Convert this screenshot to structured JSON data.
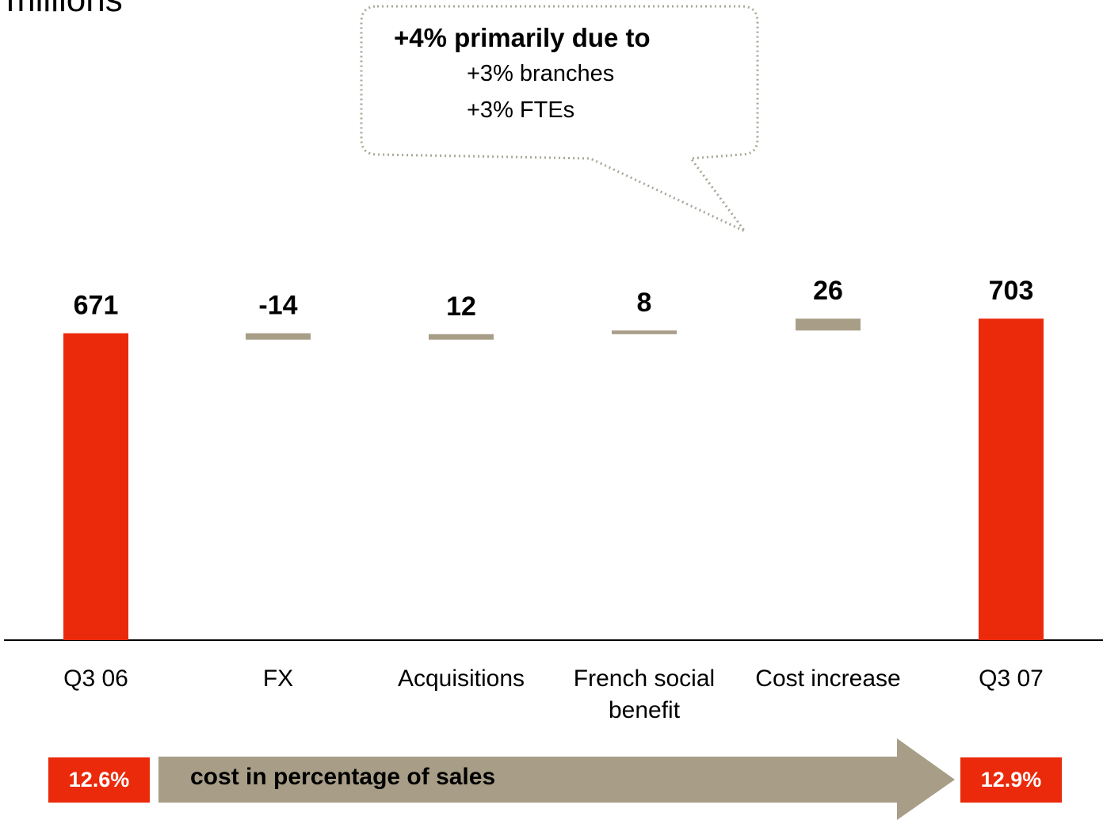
{
  "header": {
    "title": "millions"
  },
  "callout": {
    "headline": "+4% primarily due to",
    "lines": [
      "+3% branches",
      "+3% FTEs"
    ]
  },
  "footer": {
    "start_pct": "12.6%",
    "arrow_label": "cost in percentage of sales",
    "end_pct": "12.9%"
  },
  "colors": {
    "total": "#ea2a0b",
    "delta": "#a89e88",
    "axis": "#000000",
    "callout_border": "#a8a898"
  },
  "chart_data": {
    "type": "bar",
    "subtype": "waterfall",
    "categories": [
      "Q3 06",
      "FX",
      "Acquisitions",
      "French social benefit",
      "Cost increase",
      "Q3 07"
    ],
    "category_lines": [
      [
        "Q3 06"
      ],
      [
        "FX"
      ],
      [
        "Acquisitions"
      ],
      [
        "French social",
        "benefit"
      ],
      [
        "Cost increase"
      ],
      [
        "Q3 07"
      ]
    ],
    "values": [
      671,
      -14,
      12,
      8,
      26,
      703
    ],
    "value_labels": [
      "671",
      "-14",
      "12",
      "8",
      "26",
      "703"
    ],
    "kinds": [
      "total",
      "delta",
      "delta",
      "delta",
      "delta",
      "total"
    ],
    "grid": false,
    "legend": "none"
  }
}
